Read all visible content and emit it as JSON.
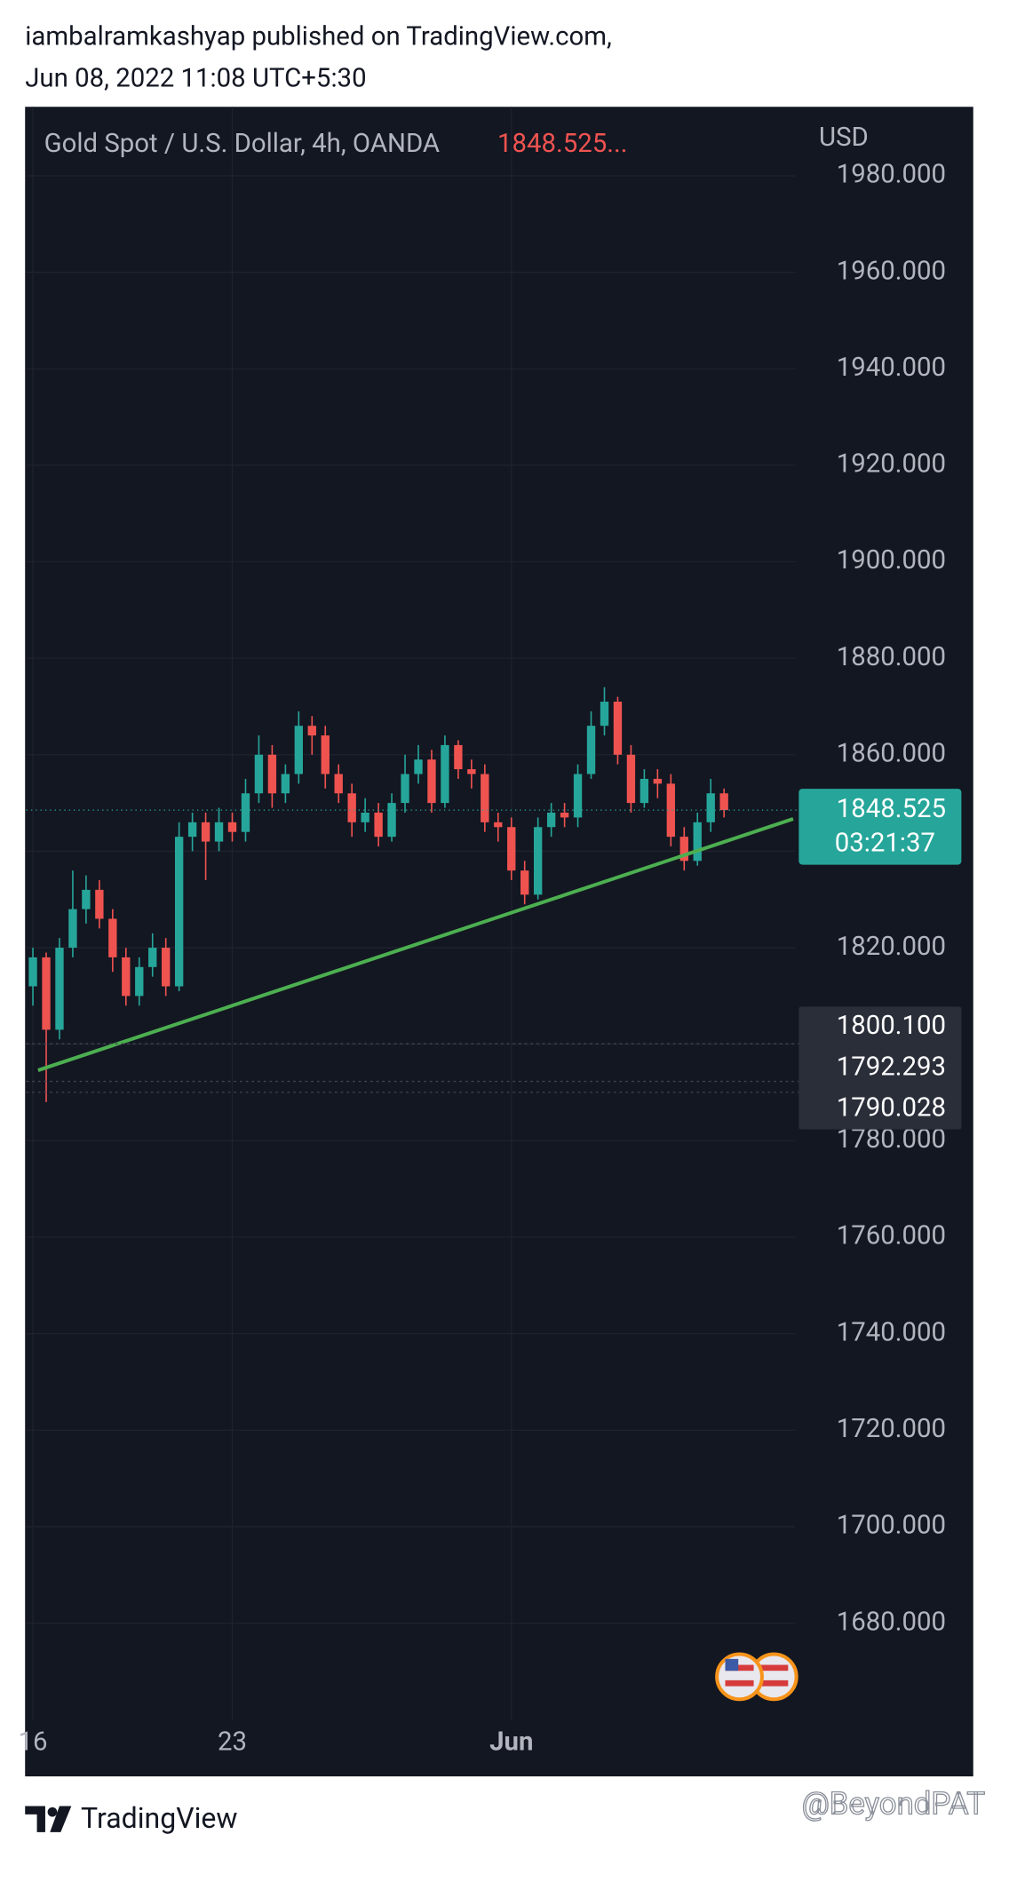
{
  "header": {
    "line1": "iambalramkashyap published on TradingView.com,",
    "line2": "Jun 08, 2022 11:08 UTC+5:30"
  },
  "chart_data": {
    "type": "candlestick",
    "title": "Gold Spot / U.S. Dollar, 4h, OANDA",
    "legend_price": "1848.525...",
    "currency": "USD",
    "categories": [
      "16",
      null,
      null,
      null,
      null,
      null,
      null,
      null,
      null,
      null,
      null,
      null,
      null,
      null,
      null,
      "23",
      null,
      null,
      null,
      null,
      null,
      null,
      null,
      null,
      null,
      null,
      null,
      null,
      null,
      null,
      null,
      null,
      null,
      null,
      null,
      null,
      "Jun",
      null,
      null,
      null,
      null,
      null,
      null,
      null,
      null,
      null,
      null,
      null,
      null,
      null,
      null,
      null,
      null
    ],
    "open": [
      1812,
      1818,
      1803,
      1820,
      1828,
      1832,
      1826,
      1818,
      1810,
      1816,
      1820,
      1812,
      1843,
      1846,
      1842,
      1846,
      1844,
      1852,
      1860,
      1852,
      1856,
      1866,
      1864,
      1856,
      1852,
      1846,
      1848,
      1843,
      1850,
      1856,
      1859,
      1850,
      1862,
      1857,
      1856,
      1846,
      1845,
      1836,
      1831,
      1845,
      1848,
      1847,
      1856,
      1866,
      1871,
      1860,
      1850,
      1855,
      1854,
      1843,
      1838,
      1846,
      1852
    ],
    "high": [
      1820,
      1819,
      1822,
      1836,
      1835,
      1834,
      1828,
      1820,
      1818,
      1823,
      1822,
      1846,
      1848,
      1848,
      1849,
      1848,
      1855,
      1864,
      1862,
      1858,
      1869,
      1868,
      1866,
      1858,
      1854,
      1851,
      1850,
      1852,
      1860,
      1862,
      1861,
      1864,
      1863,
      1859,
      1858,
      1848,
      1847,
      1838,
      1847,
      1850,
      1850,
      1858,
      1869,
      1874,
      1872,
      1862,
      1857,
      1857,
      1856,
      1845,
      1848,
      1855,
      1853
    ],
    "low": [
      1808,
      1788,
      1801,
      1818,
      1825,
      1824,
      1815,
      1808,
      1808,
      1814,
      1810,
      1811,
      1840,
      1834,
      1840,
      1842,
      1842,
      1850,
      1849,
      1850,
      1854,
      1860,
      1853,
      1850,
      1843,
      1844,
      1841,
      1842,
      1848,
      1854,
      1848,
      1849,
      1855,
      1853,
      1844,
      1842,
      1834,
      1829,
      1830,
      1843,
      1845,
      1845,
      1855,
      1864,
      1858,
      1848,
      1849,
      1851,
      1841,
      1836,
      1837,
      1844,
      1847
    ],
    "close": [
      1818,
      1803,
      1820,
      1828,
      1832,
      1826,
      1818,
      1810,
      1816,
      1820,
      1812,
      1843,
      1846,
      1842,
      1846,
      1844,
      1852,
      1860,
      1852,
      1856,
      1866,
      1864,
      1856,
      1852,
      1846,
      1848,
      1843,
      1850,
      1856,
      1859,
      1850,
      1862,
      1857,
      1856,
      1846,
      1845,
      1836,
      1831,
      1845,
      1848,
      1847,
      1856,
      1866,
      1871,
      1860,
      1850,
      1855,
      1854,
      1843,
      1838,
      1846,
      1852,
      1848.525
    ],
    "up_color": "#26a69a",
    "down_color": "#ef5350",
    "ylim": [
      1659.8,
      1994.3
    ],
    "yticks": [
      {
        "value": 1680,
        "label": "1680.000"
      },
      {
        "value": 1700,
        "label": "1700.000"
      },
      {
        "value": 1720,
        "label": "1720.000"
      },
      {
        "value": 1740,
        "label": "1740.000"
      },
      {
        "value": 1760,
        "label": "1760.000"
      },
      {
        "value": 1780,
        "label": "1780.000"
      },
      {
        "value": 1800,
        "label": "1800.000"
      },
      {
        "value": 1820,
        "label": "1820.000"
      },
      {
        "value": 1840,
        "label": "1840.000"
      },
      {
        "value": 1860,
        "label": "1860.000"
      },
      {
        "value": 1880,
        "label": "1880.000"
      },
      {
        "value": 1900,
        "label": "1900.000"
      },
      {
        "value": 1920,
        "label": "1920.000"
      },
      {
        "value": 1940,
        "label": "1940.000"
      },
      {
        "value": 1960,
        "label": "1960.000"
      },
      {
        "value": 1980,
        "label": "1980.000"
      }
    ],
    "grid": true,
    "last_price": {
      "value": 1848.525,
      "label": "1848.525",
      "countdown": "03:21:37",
      "color": "#26a69a"
    },
    "price_labels": [
      {
        "value": 1800.1,
        "label": "1800.100"
      },
      {
        "value": 1792.293,
        "label": "1792.293"
      },
      {
        "value": 1790.028,
        "label": "1790.028"
      }
    ],
    "trendline": {
      "x": [
        0.39,
        57.2
      ],
      "y": [
        1794.6,
        1846.7
      ],
      "color": "#4caf50"
    }
  },
  "footer": {
    "brand": "TradingView",
    "watermark": "@BeyondPAT"
  }
}
